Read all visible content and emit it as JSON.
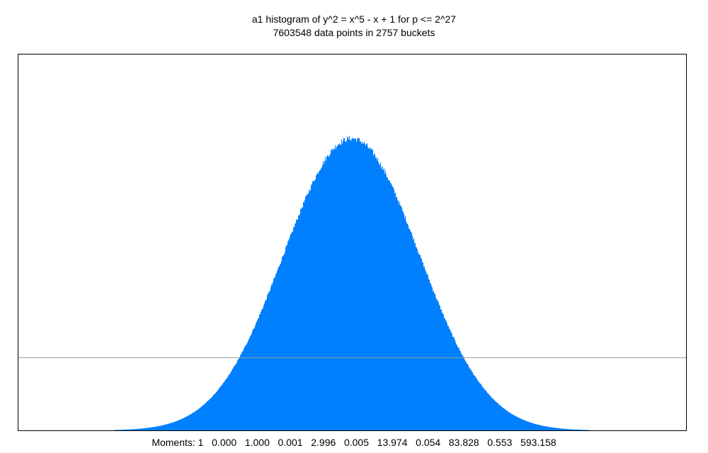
{
  "chart_data": {
    "type": "bar",
    "title": "a1 histogram of y^2 = x^5 - x + 1 for p <= 2^27",
    "subtitle": "7603548 data points in 2757 buckets",
    "data_points": 7603548,
    "buckets": 2757,
    "x_range": [
      -4,
      4
    ],
    "reference_line_y": 0.058,
    "peak_y": 0.233,
    "moments_label": "Moments:",
    "moments": [
      "1",
      "0.000",
      "1.000",
      "0.001",
      "2.996",
      "0.005",
      "13.974",
      "0.054",
      "83.828",
      "0.553",
      "593.158"
    ],
    "bar_color": "#0080ff",
    "reference_line_color": "#999999",
    "grid": false,
    "legend": "none"
  }
}
